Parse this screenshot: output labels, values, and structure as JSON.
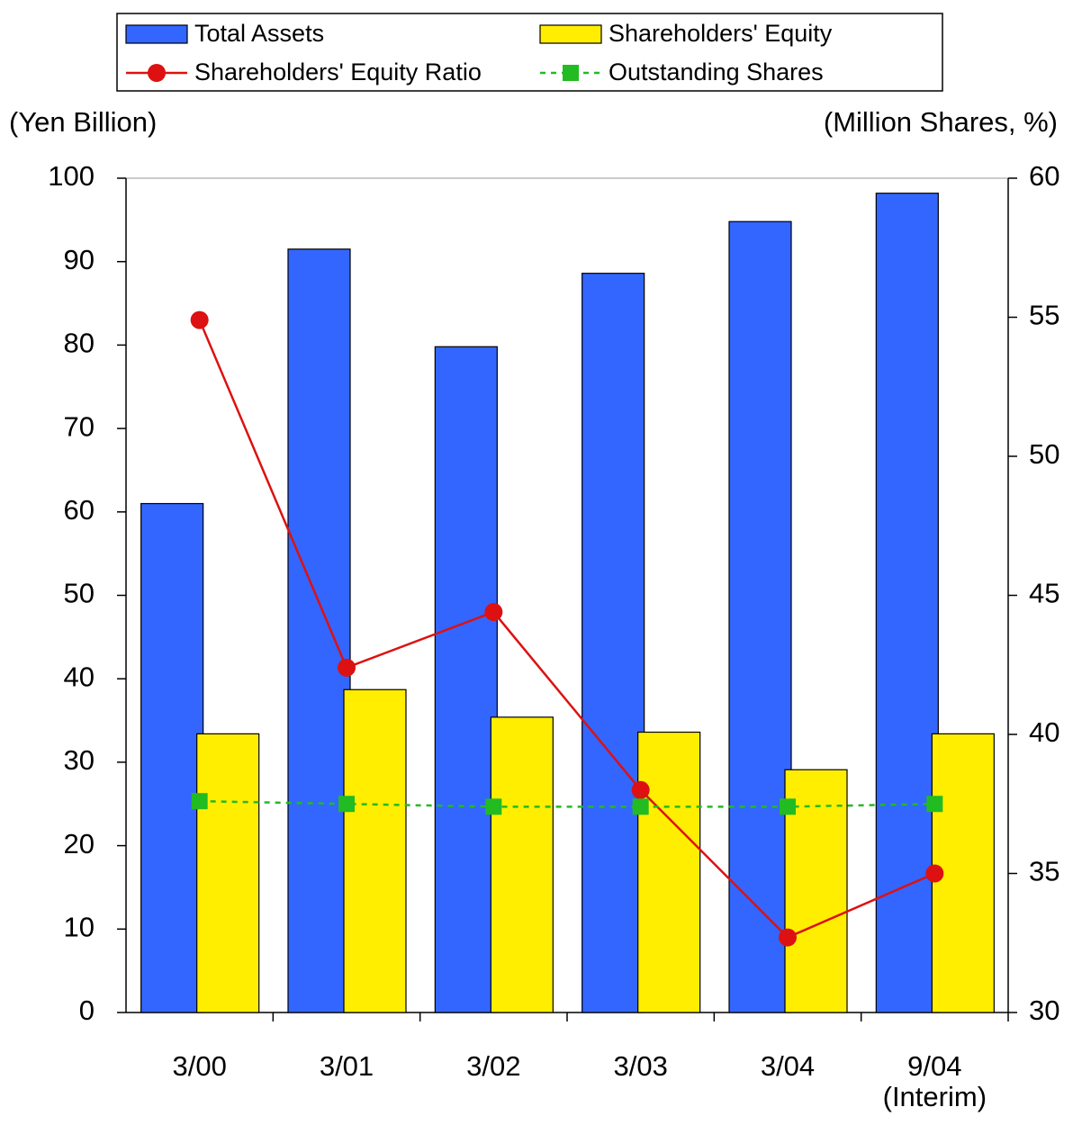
{
  "chart_data": {
    "type": "bar",
    "y_label": "(Yen Billion)",
    "y2_label": "(Million Shares, %)",
    "categories": [
      "3/00",
      "3/01",
      "3/02",
      "3/03",
      "3/04",
      "9/04\n(Interim)"
    ],
    "series": [
      {
        "name": "Total Assets",
        "color": "#3366ff",
        "type": "bar",
        "values": [
          61.0,
          91.5,
          79.8,
          88.6,
          94.8,
          98.2
        ]
      },
      {
        "name": "Shareholders' Equity",
        "color": "#ffee00",
        "type": "bar",
        "values": [
          33.4,
          38.7,
          35.4,
          33.6,
          29.1,
          33.4
        ]
      },
      {
        "name": "Shareholders' Equity Ratio",
        "color": "#dd1111",
        "type": "line",
        "axis": "y2",
        "values": [
          54.9,
          42.4,
          44.4,
          38.0,
          32.7,
          35.0
        ]
      },
      {
        "name": "Outstanding Shares",
        "color": "#22bb22",
        "type": "line",
        "dashed": true,
        "axis": "y2",
        "values": [
          37.6,
          37.5,
          37.4,
          37.4,
          37.4,
          37.5
        ]
      }
    ],
    "ylim": [
      0,
      100
    ],
    "yticks": [
      0,
      10,
      20,
      30,
      40,
      50,
      60,
      70,
      80,
      90,
      100
    ],
    "y2lim": [
      30,
      60
    ],
    "y2ticks": [
      30,
      35,
      40,
      45,
      50,
      55,
      60
    ]
  }
}
